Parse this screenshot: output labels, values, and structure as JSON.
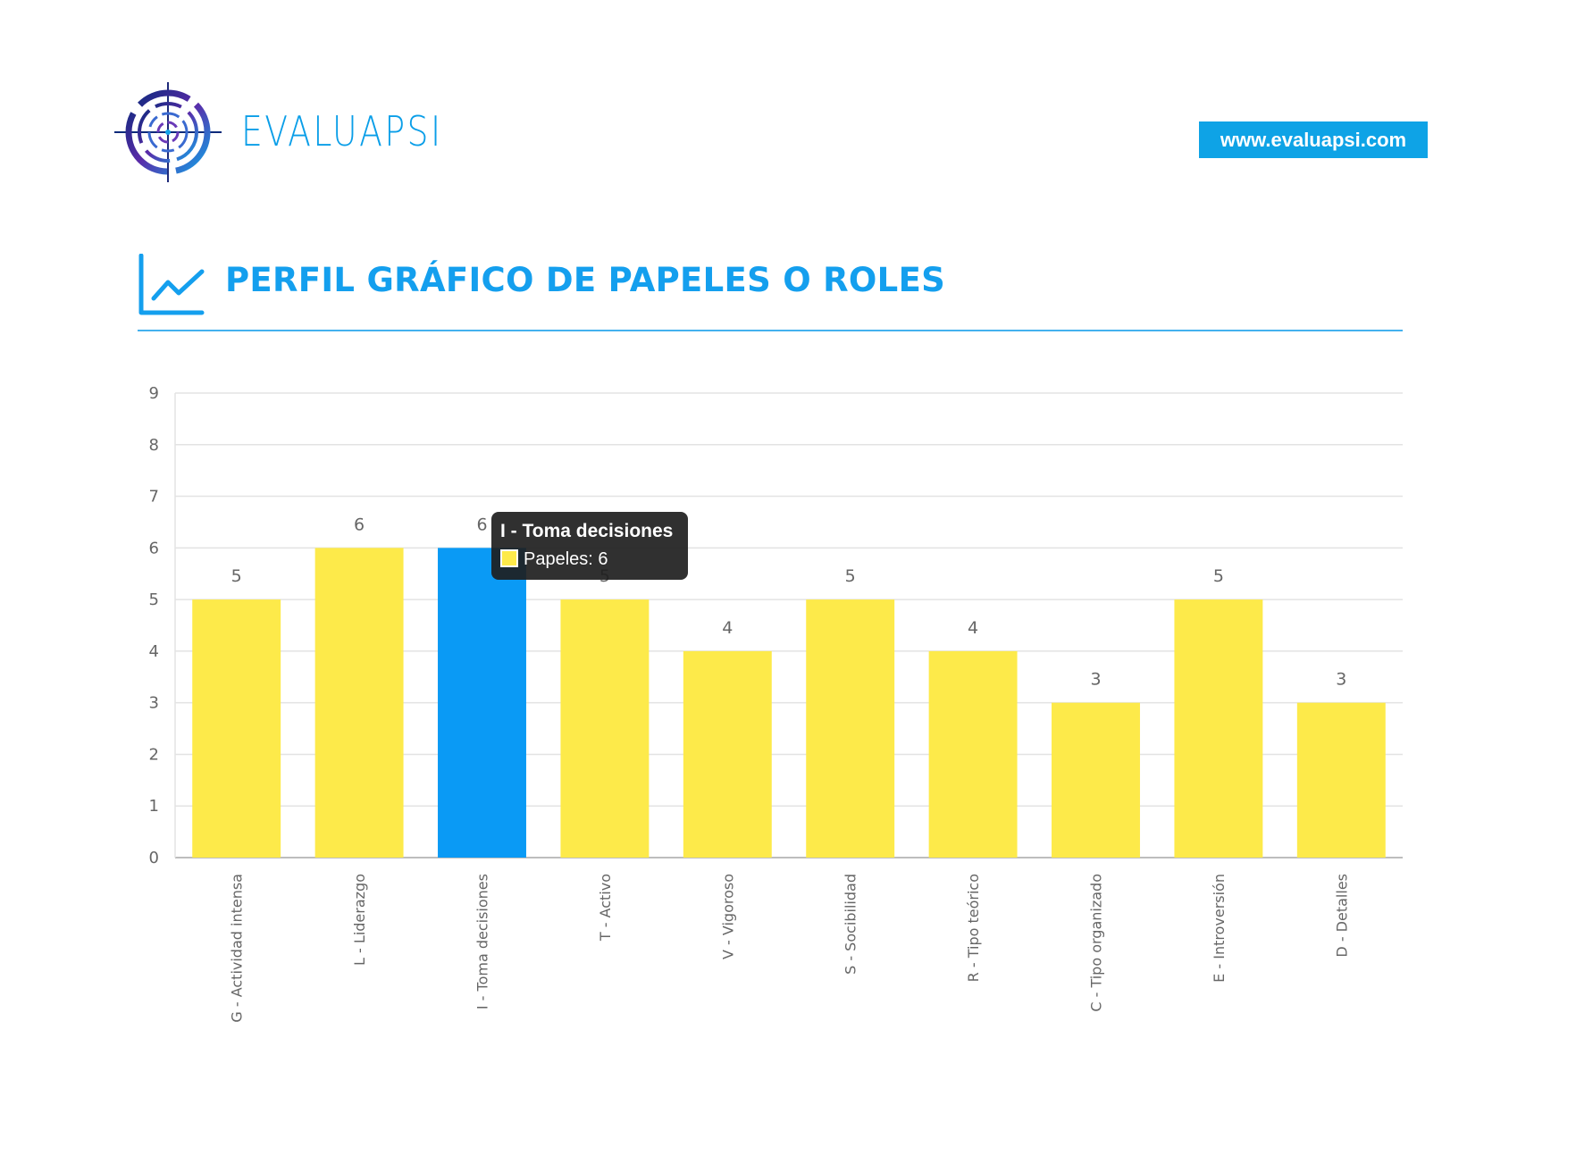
{
  "brand": {
    "name": "EVALUAPSI",
    "website": "www.evaluapsi.com",
    "logo_icon": "target-logo-icon"
  },
  "section": {
    "title": "PERFIL GRÁFICO DE PAPELES O ROLES",
    "icon": "line-chart-icon"
  },
  "colors": {
    "accent": "#149fee",
    "bar": "#fdea4a",
    "bar_highlight": "#0a9af5",
    "grid": "#e3e3e3",
    "text": "#666666"
  },
  "tooltip": {
    "title": "I - Toma decisiones",
    "body": "Papeles: 6",
    "swatch_color": "#fdea4a"
  },
  "chart_data": {
    "type": "bar",
    "title": "PERFIL GRÁFICO DE PAPELES O ROLES",
    "xlabel": "",
    "ylabel": "",
    "ylim": [
      0,
      9
    ],
    "yticks": [
      "0",
      "1",
      "2",
      "3",
      "4",
      "5",
      "6",
      "7",
      "8",
      "9"
    ],
    "grid": true,
    "categories": [
      "G - Actividad intensa",
      "L - Liderazgo",
      "I - Toma decisiones",
      "T - Activo",
      "V - Vigoroso",
      "S - Socibilidad",
      "R - Tipo teórico",
      "C - Tipo organizado",
      "E - Introversión",
      "D - Detalles"
    ],
    "series": [
      {
        "name": "Papeles",
        "values": [
          5,
          6,
          6,
          5,
          4,
          5,
          4,
          3,
          5,
          3
        ]
      }
    ],
    "highlighted_category": "I - Toma decisiones"
  }
}
